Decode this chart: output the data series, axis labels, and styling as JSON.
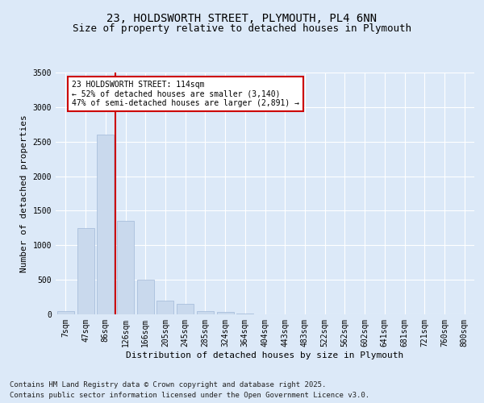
{
  "title": "23, HOLDSWORTH STREET, PLYMOUTH, PL4 6NN",
  "subtitle": "Size of property relative to detached houses in Plymouth",
  "xlabel": "Distribution of detached houses by size in Plymouth",
  "ylabel": "Number of detached properties",
  "categories": [
    "7sqm",
    "47sqm",
    "86sqm",
    "126sqm",
    "166sqm",
    "205sqm",
    "245sqm",
    "285sqm",
    "324sqm",
    "364sqm",
    "404sqm",
    "443sqm",
    "483sqm",
    "522sqm",
    "562sqm",
    "602sqm",
    "641sqm",
    "681sqm",
    "721sqm",
    "760sqm",
    "800sqm"
  ],
  "values": [
    50,
    1250,
    2600,
    1350,
    500,
    200,
    150,
    50,
    35,
    10,
    5,
    2,
    1,
    0,
    0,
    0,
    0,
    0,
    0,
    0,
    0
  ],
  "bar_color": "#c9d9ed",
  "bar_edge_color": "#a0b8d8",
  "vline_color": "#cc0000",
  "annotation_text": "23 HOLDSWORTH STREET: 114sqm\n← 52% of detached houses are smaller (3,140)\n47% of semi-detached houses are larger (2,891) →",
  "annotation_box_color": "#ffffff",
  "annotation_box_edge": "#cc0000",
  "ylim": [
    0,
    3500
  ],
  "yticks": [
    0,
    500,
    1000,
    1500,
    2000,
    2500,
    3000,
    3500
  ],
  "bg_color": "#dce9f8",
  "plot_bg_color": "#dce9f8",
  "footer_line1": "Contains HM Land Registry data © Crown copyright and database right 2025.",
  "footer_line2": "Contains public sector information licensed under the Open Government Licence v3.0.",
  "title_fontsize": 10,
  "subtitle_fontsize": 9,
  "tick_fontsize": 7,
  "label_fontsize": 8,
  "footer_fontsize": 6.5
}
